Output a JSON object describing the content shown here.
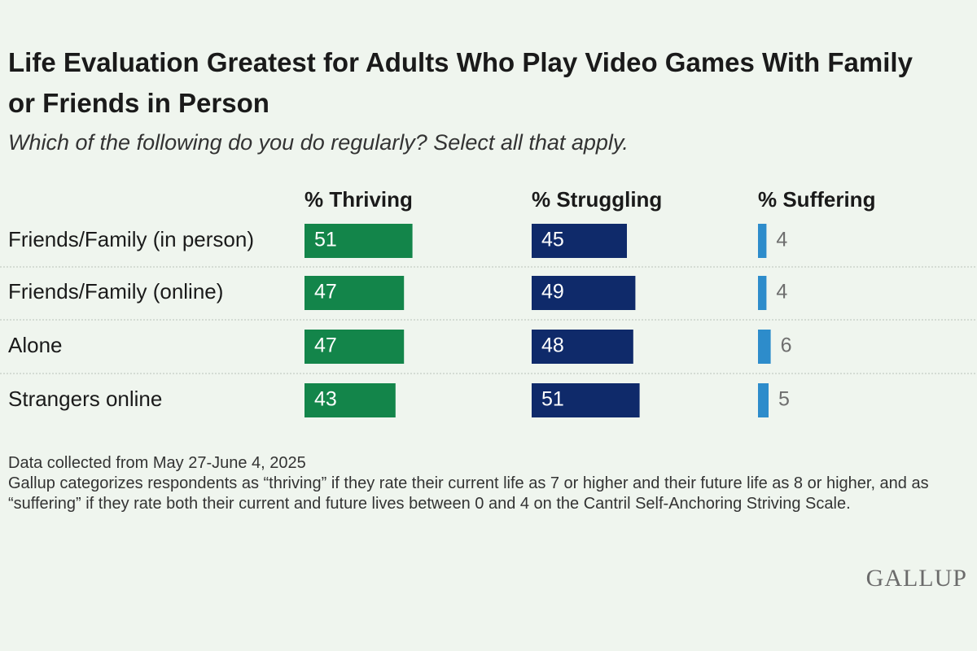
{
  "chart_data": {
    "type": "bar",
    "title": "Life Evaluation Greatest for Adults Who Play Video Games With Family or Friends in Person",
    "subtitle": "Which of the following do you do regularly? Select all that apply.",
    "categories": [
      "Friends/Family (in person)",
      "Friends/Family (online)",
      "Alone",
      "Strangers online"
    ],
    "series": [
      {
        "name": "% Thriving",
        "color": "#13854a",
        "values": [
          51,
          47,
          47,
          43
        ]
      },
      {
        "name": "% Struggling",
        "color": "#0f2a6a",
        "values": [
          45,
          49,
          48,
          51
        ]
      },
      {
        "name": "% Suffering",
        "color": "#2d8ccb",
        "values": [
          4,
          4,
          6,
          5
        ]
      }
    ],
    "notes": [
      "Data collected from May 27-June 4, 2025",
      "Gallup categorizes respondents as “thriving” if they rate their current life as 7 or higher and their future life as 8 or higher, and as “suffering” if they rate both their current and future lives between 0 and 4 on the Cantril Self-Anchoring Striving Scale."
    ],
    "logo": "GALLUP"
  }
}
